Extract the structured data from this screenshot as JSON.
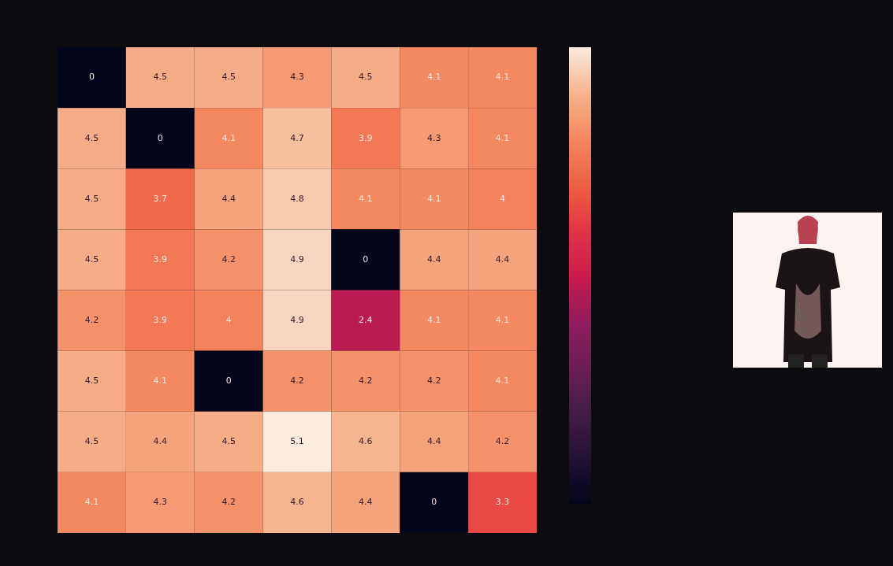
{
  "chart_data": {
    "type": "heatmap",
    "cells": [
      [
        0,
        4.5,
        4.5,
        4.3,
        4.5,
        4.1,
        4.1
      ],
      [
        4.5,
        0,
        4.1,
        4.7,
        3.9,
        4.3,
        4.1
      ],
      [
        4.5,
        3.7,
        4.4,
        4.8,
        4.1,
        4.1,
        4
      ],
      [
        4.5,
        3.9,
        4.2,
        4.9,
        0,
        4.4,
        4.4
      ],
      [
        4.2,
        3.9,
        4,
        4.9,
        2.4,
        4.1,
        4.1
      ],
      [
        4.5,
        4.1,
        0,
        4.2,
        4.2,
        4.2,
        4.1
      ],
      [
        4.5,
        4.4,
        4.5,
        5.1,
        4.6,
        4.4,
        4.2
      ],
      [
        4.1,
        4.3,
        4.2,
        4.6,
        4.4,
        0,
        3.3
      ]
    ],
    "color_range": [
      0,
      5.1
    ],
    "data_labels": true,
    "tick_labels": false
  }
}
